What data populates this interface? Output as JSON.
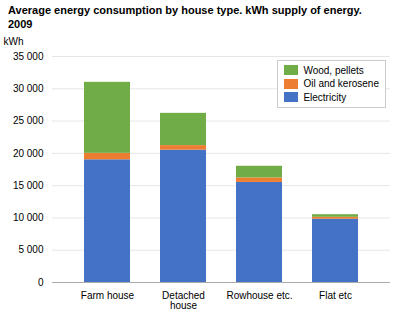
{
  "chart_data": {
    "type": "bar",
    "stacked": true,
    "title": "Average energy consumption by house type. kWh supply of energy.",
    "subtitle": "2009",
    "ylabel": "kWh",
    "categories": [
      "Farm house",
      "Detached\nhouse",
      "Rowhouse etc.",
      "Flat etc"
    ],
    "series": [
      {
        "name": "Electricity",
        "color": "#4472C4",
        "values": [
          19000,
          20500,
          15500,
          9800
        ]
      },
      {
        "name": "Oil and kerosene",
        "color": "#ED7D31",
        "values": [
          1000,
          700,
          700,
          300
        ]
      },
      {
        "name": "Wood, pellets",
        "color": "#70AD47",
        "values": [
          11000,
          5000,
          1800,
          400
        ]
      }
    ],
    "ylim": [
      0,
      35000
    ],
    "yticks": [
      0,
      {
        "value": 5000,
        "label": "5 000"
      },
      {
        "value": 10000,
        "label": "10 000"
      },
      {
        "value": 15000,
        "label": "15 000"
      },
      {
        "value": 20000,
        "label": "20 000"
      },
      {
        "value": 25000,
        "label": "25 000"
      },
      {
        "value": 30000,
        "label": "30 000"
      },
      {
        "value": 35000,
        "label": "35 000"
      }
    ],
    "grid": true,
    "legend": "upper right"
  }
}
